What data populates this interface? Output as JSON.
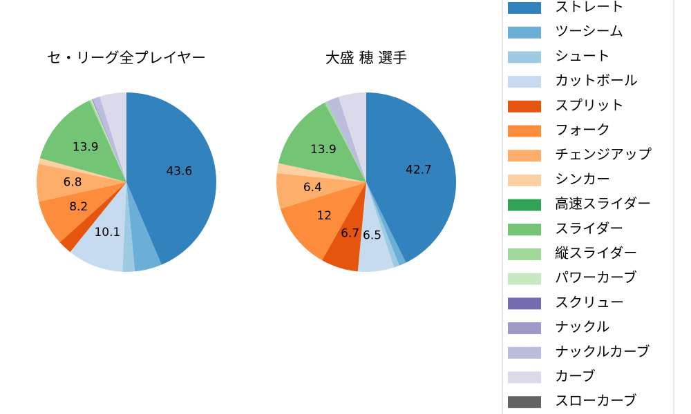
{
  "chart_data": [
    {
      "type": "pie",
      "title": "セ・リーグ全プレイヤー",
      "categories": [
        "ストレート",
        "ツーシーム",
        "シュート",
        "カットボール",
        "スプリット",
        "フォーク",
        "チェンジアップ",
        "シンカー",
        "高速スライダー",
        "スライダー",
        "縦スライダー",
        "パワーカーブ",
        "スクリュー",
        "ナックル",
        "ナックルカーブ",
        "カーブ",
        "スローカーブ"
      ],
      "colors": [
        "#3182bd",
        "#6baed6",
        "#9ecae1",
        "#c6dbef",
        "#e6550d",
        "#fd8d3c",
        "#fdae6b",
        "#fdd0a2",
        "#31a354",
        "#74c476",
        "#a1d99b",
        "#c7e9c0",
        "#756bb1",
        "#9e9ac8",
        "#bcbddc",
        "#dadaeb",
        "#636363"
      ],
      "values": [
        43.6,
        4.9,
        2.2,
        10.1,
        2.5,
        8.2,
        6.8,
        1.0,
        0,
        13.9,
        0.3,
        0.2,
        0,
        0.2,
        1.3,
        4.8,
        0
      ]
    },
    {
      "type": "pie",
      "title": "大盛 穂  選手",
      "values": [
        42.7,
        1.3,
        1.0,
        6.5,
        6.7,
        12.0,
        6.4,
        1.8,
        0,
        13.9,
        0.4,
        0,
        0,
        0,
        2.3,
        5.0,
        0
      ]
    }
  ]
}
